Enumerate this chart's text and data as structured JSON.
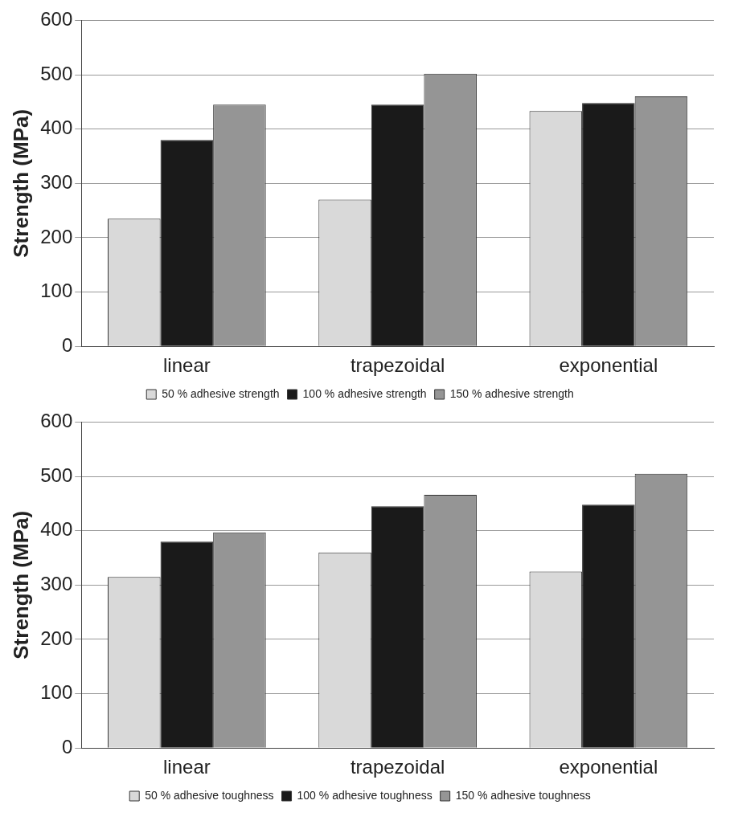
{
  "chart_data": [
    {
      "type": "bar",
      "categories": [
        "linear",
        "trapezoidal",
        "exponential"
      ],
      "ylabel": "Strength (MPa)",
      "ylim": [
        0,
        600
      ],
      "yticks": [
        0,
        100,
        200,
        300,
        400,
        500,
        600
      ],
      "grid": "y",
      "legend": "bottom",
      "series": [
        {
          "name": "50 % adhesive strength",
          "color": "#d9d9d9",
          "values": [
            235,
            270,
            433
          ]
        },
        {
          "name": "100 % adhesive strength",
          "color": "#1a1a1a",
          "values": [
            380,
            445,
            448
          ]
        },
        {
          "name": "150 % adhesive strength",
          "color": "#959595",
          "values": [
            445,
            502,
            460
          ]
        }
      ]
    },
    {
      "type": "bar",
      "categories": [
        "linear",
        "trapezoidal",
        "exponential"
      ],
      "ylabel": "Strength (MPa)",
      "ylim": [
        0,
        600
      ],
      "yticks": [
        0,
        100,
        200,
        300,
        400,
        500,
        600
      ],
      "grid": "y",
      "legend": "bottom",
      "series": [
        {
          "name": "50 % adhesive toughness",
          "color": "#d9d9d9",
          "values": [
            315,
            360,
            325
          ]
        },
        {
          "name": "100 % adhesive toughness",
          "color": "#1a1a1a",
          "values": [
            380,
            445,
            448
          ]
        },
        {
          "name": "150 % adhesive toughness",
          "color": "#959595",
          "values": [
            397,
            466,
            505
          ]
        }
      ]
    }
  ]
}
